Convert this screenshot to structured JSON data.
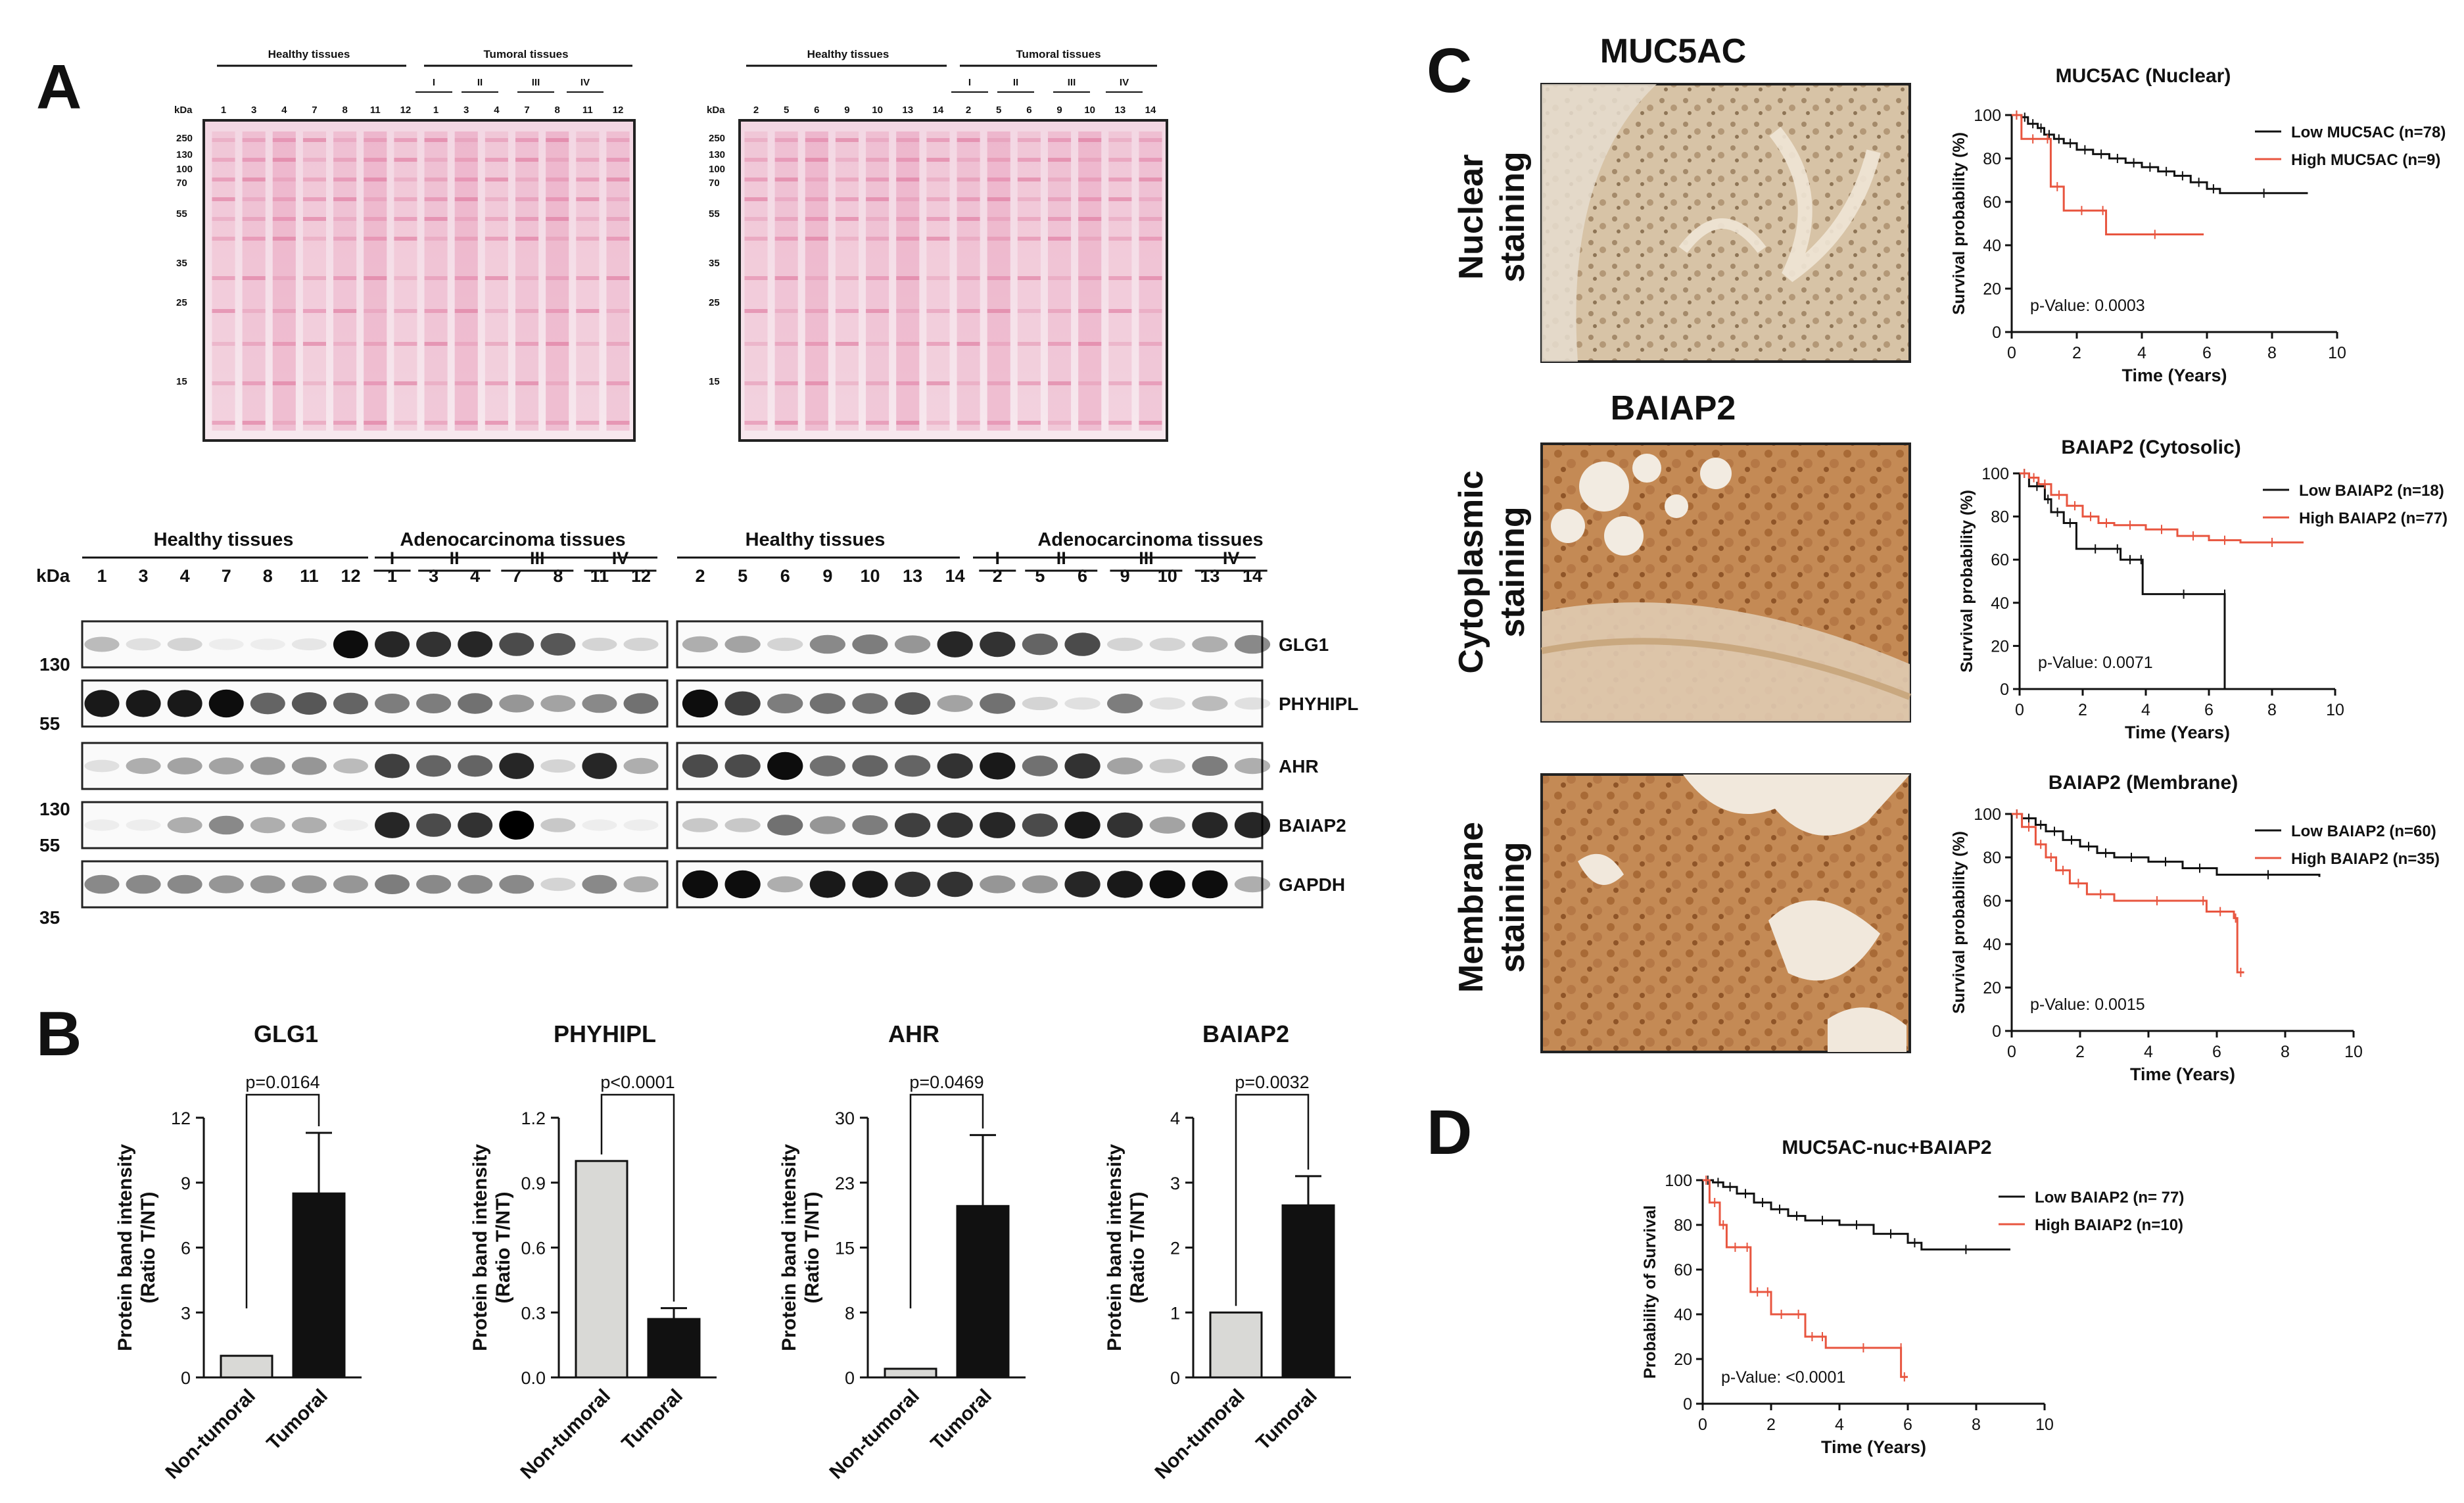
{
  "panels": {
    "A": "A",
    "B": "B",
    "C": "C",
    "D": "D"
  },
  "ponceau": {
    "left": {
      "header_healthy": "Healthy tissues",
      "header_tumoral": "Tumoral tissues",
      "stages": [
        "I",
        "II",
        "III",
        "IV"
      ],
      "kda_label": "kDa",
      "lanes": [
        "1",
        "3",
        "4",
        "7",
        "8",
        "11",
        "12",
        "1",
        "3",
        "4",
        "7",
        "8",
        "11",
        "12"
      ]
    },
    "right": {
      "header_healthy": "Healthy tissues",
      "header_tumoral": "Tumoral tissues",
      "stages": [
        "I",
        "II",
        "III",
        "IV"
      ],
      "kda_label": "kDa",
      "lanes": [
        "2",
        "5",
        "6",
        "9",
        "10",
        "13",
        "14",
        "2",
        "5",
        "6",
        "9",
        "10",
        "13",
        "14"
      ]
    },
    "markers": [
      "250",
      "130",
      "100",
      "70",
      "55",
      "35",
      "25",
      "15"
    ],
    "markers_right": [
      "250",
      "130",
      "100",
      "70",
      "55",
      "35",
      "25",
      "15"
    ]
  },
  "western": {
    "left_healthy": "Healthy tissues",
    "left_adeno": "Adenocarcinoma tissues",
    "right_healthy": "Healthy tissues",
    "right_adeno": "Adenocarcinoma tissues",
    "stages": [
      "I",
      "II",
      "III",
      "IV"
    ],
    "kda_label": "kDa",
    "lanes_left": [
      "1",
      "3",
      "4",
      "7",
      "8",
      "11",
      "12",
      "1",
      "3",
      "4",
      "7",
      "8",
      "11",
      "12"
    ],
    "lanes_right": [
      "2",
      "5",
      "6",
      "9",
      "10",
      "13",
      "14",
      "2",
      "5",
      "6",
      "9",
      "10",
      "13",
      "14"
    ],
    "markers": [
      "130",
      "55",
      "130",
      "55",
      "35"
    ],
    "proteins": [
      "GLG1",
      "PHYHIPL",
      "AHR",
      "BAIAP2",
      "GAPDH"
    ]
  },
  "bars": {
    "ylabel_1": "Protein band intensity",
    "ylabel_2": "(Ratio T/NT)",
    "categories": [
      "Non-tumoral",
      "Tumoral"
    ],
    "charts": [
      {
        "title": "GLG1",
        "pvalue": "p=0.0164",
        "ticks": [
          "0",
          "3",
          "6",
          "9",
          "12"
        ],
        "ymax": 12,
        "values": [
          1.0,
          8.5
        ],
        "err": [
          0,
          2.8
        ]
      },
      {
        "title": "PHYHIPL",
        "pvalue": "p<0.0001",
        "ticks": [
          "0.0",
          "0.3",
          "0.6",
          "0.9",
          "1.2"
        ],
        "ymax": 1.2,
        "values": [
          1.0,
          0.27
        ],
        "err": [
          0,
          0.05
        ]
      },
      {
        "title": "AHR",
        "pvalue": "p=0.0469",
        "ticks": [
          "0",
          "8",
          "15",
          "23",
          "30"
        ],
        "ymax": 30,
        "values": [
          1.0,
          19.8
        ],
        "err": [
          0,
          8.2
        ]
      },
      {
        "title": "BAIAP2",
        "pvalue": "p=0.0032",
        "ticks": [
          "0",
          "1",
          "2",
          "3",
          "4"
        ],
        "ymax": 4,
        "values": [
          1.0,
          2.65
        ],
        "err": [
          0,
          0.45
        ]
      }
    ]
  },
  "staining": {
    "muc5ac_title": "MUC5AC",
    "baiap2_title": "BAIAP2",
    "nuclear_1": "Nuclear",
    "nuclear_2": "staining",
    "cyto_1": "Cytoplasmic",
    "cyto_2": "staining",
    "membrane_1": "Membrane",
    "membrane_2": "staining"
  },
  "km": {
    "ylabel": "Survival probability (%)",
    "xlabel": "Time (Years)",
    "yticks": [
      "0",
      "20",
      "40",
      "60",
      "80",
      "100"
    ],
    "xticks": [
      "0",
      "2",
      "4",
      "6",
      "8",
      "10"
    ],
    "charts": [
      {
        "title": "MUC5AC (Nuclear)",
        "pvalue": "p-Value: 0.0003",
        "legend_low": "Low MUC5AC (n=78)",
        "legend_high": "High MUC5AC (n=9)",
        "low": [
          [
            0,
            100
          ],
          [
            0.3,
            99
          ],
          [
            0.5,
            96
          ],
          [
            0.8,
            94
          ],
          [
            1.0,
            91
          ],
          [
            1.3,
            89
          ],
          [
            1.6,
            87
          ],
          [
            2.0,
            84
          ],
          [
            2.5,
            82
          ],
          [
            3.0,
            80
          ],
          [
            3.5,
            78
          ],
          [
            4.0,
            76
          ],
          [
            4.5,
            74
          ],
          [
            5.0,
            72
          ],
          [
            5.5,
            69
          ],
          [
            6.0,
            66
          ],
          [
            6.4,
            64
          ],
          [
            9.1,
            64
          ]
        ],
        "high": [
          [
            0,
            100
          ],
          [
            0.3,
            89
          ],
          [
            1.0,
            89
          ],
          [
            1.2,
            67
          ],
          [
            1.6,
            56
          ],
          [
            2.7,
            56
          ],
          [
            2.9,
            45
          ],
          [
            5.9,
            45
          ]
        ]
      },
      {
        "title": "BAIAP2 (Cytosolic)",
        "pvalue": "p-Value: 0.0071",
        "legend_low": "Low BAIAP2 (n=18)",
        "legend_high": "High BAIAP2 (n=77)",
        "low": [
          [
            0,
            100
          ],
          [
            0.3,
            94
          ],
          [
            0.8,
            88
          ],
          [
            1.0,
            82
          ],
          [
            1.4,
            77
          ],
          [
            1.8,
            65
          ],
          [
            3.0,
            65
          ],
          [
            3.2,
            60
          ],
          [
            3.8,
            60
          ],
          [
            3.9,
            44
          ],
          [
            6.5,
            44
          ],
          [
            6.5,
            0
          ]
        ],
        "high": [
          [
            0,
            100
          ],
          [
            0.3,
            98
          ],
          [
            0.6,
            95
          ],
          [
            1.0,
            90
          ],
          [
            1.5,
            85
          ],
          [
            2.0,
            80
          ],
          [
            2.5,
            77
          ],
          [
            3.0,
            76
          ],
          [
            4.0,
            74
          ],
          [
            5.0,
            71
          ],
          [
            6.0,
            69
          ],
          [
            7.0,
            68
          ],
          [
            9.0,
            68
          ]
        ]
      },
      {
        "title": "BAIAP2 (Membrane)",
        "pvalue": "p-Value: 0.0015",
        "legend_low": "Low BAIAP2 (n=60)",
        "legend_high": "High BAIAP2 (n=35)",
        "low": [
          [
            0,
            100
          ],
          [
            0.3,
            98
          ],
          [
            0.7,
            95
          ],
          [
            1.0,
            92
          ],
          [
            1.5,
            88
          ],
          [
            2.0,
            85
          ],
          [
            2.5,
            82
          ],
          [
            3.0,
            80
          ],
          [
            4.0,
            78
          ],
          [
            5.0,
            75
          ],
          [
            6.0,
            72
          ],
          [
            9.0,
            71
          ]
        ],
        "high": [
          [
            0,
            100
          ],
          [
            0.3,
            94
          ],
          [
            0.7,
            86
          ],
          [
            1.0,
            80
          ],
          [
            1.3,
            74
          ],
          [
            1.7,
            68
          ],
          [
            2.2,
            63
          ],
          [
            3.0,
            60
          ],
          [
            5.5,
            60
          ],
          [
            5.7,
            55
          ],
          [
            6.5,
            52
          ],
          [
            6.6,
            27
          ],
          [
            6.8,
            27
          ]
        ]
      }
    ],
    "d": {
      "title": "MUC5AC-nuc+BAIAP2",
      "ylabel": "Probability of Survival",
      "xlabel": "Time (Years)",
      "pvalue": "p-Value: <0.0001",
      "legend_low": "Low BAIAP2 (n= 77)",
      "legend_high": "High BAIAP2 (n=10)",
      "low": [
        [
          0,
          100
        ],
        [
          0.3,
          99
        ],
        [
          0.6,
          97
        ],
        [
          1.0,
          94
        ],
        [
          1.5,
          90
        ],
        [
          2.0,
          87
        ],
        [
          2.5,
          84
        ],
        [
          3.0,
          82
        ],
        [
          4.0,
          80
        ],
        [
          5.0,
          76
        ],
        [
          6.0,
          72
        ],
        [
          6.4,
          69
        ],
        [
          9.0,
          69
        ]
      ],
      "high": [
        [
          0,
          100
        ],
        [
          0.2,
          90
        ],
        [
          0.5,
          80
        ],
        [
          0.7,
          70
        ],
        [
          1.2,
          70
        ],
        [
          1.4,
          50
        ],
        [
          1.8,
          50
        ],
        [
          2.0,
          40
        ],
        [
          2.6,
          40
        ],
        [
          3.0,
          30
        ],
        [
          3.4,
          30
        ],
        [
          3.6,
          25
        ],
        [
          5.8,
          25
        ],
        [
          5.8,
          12
        ],
        [
          6.0,
          12
        ]
      ]
    }
  }
}
